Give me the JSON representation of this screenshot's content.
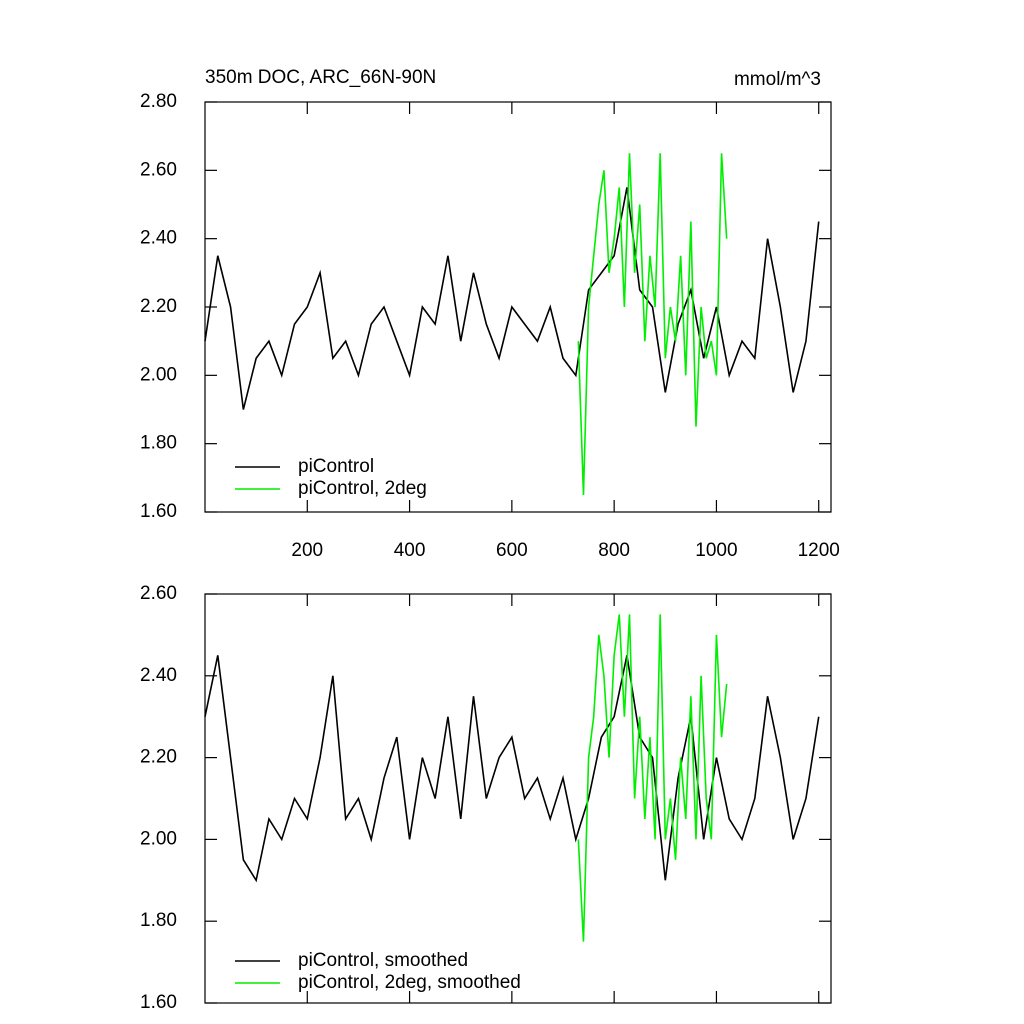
{
  "chart_data": [
    {
      "type": "line",
      "title": "350m DOC, ARC_66N-90N",
      "units": "mmol/m^3",
      "xlim": [
        0,
        1224
      ],
      "xticks": [
        200,
        400,
        600,
        800,
        1000,
        1200
      ],
      "ylim": [
        1.6,
        2.8
      ],
      "yticks": [
        {
          "value": 1.6,
          "label": "1.60"
        },
        {
          "value": 1.8,
          "label": "1.80"
        },
        {
          "value": 2.0,
          "label": "2.00"
        },
        {
          "value": 2.2,
          "label": "2.20"
        },
        {
          "value": 2.4,
          "label": "2.40"
        },
        {
          "value": 2.6,
          "label": "2.60"
        },
        {
          "value": 2.8,
          "label": "2.80"
        }
      ],
      "series": [
        {
          "name": "piControl",
          "color": "#000000",
          "x": [
            0,
            25,
            50,
            75,
            100,
            125,
            150,
            175,
            200,
            225,
            250,
            275,
            300,
            325,
            350,
            375,
            400,
            425,
            450,
            475,
            500,
            525,
            550,
            575,
            600,
            625,
            650,
            675,
            700,
            725,
            750,
            775,
            800,
            825,
            850,
            875,
            900,
            925,
            950,
            975,
            1000,
            1025,
            1050,
            1075,
            1100,
            1125,
            1150,
            1175,
            1200
          ],
          "values": [
            2.1,
            2.35,
            2.2,
            1.9,
            2.05,
            2.1,
            2.0,
            2.15,
            2.2,
            2.3,
            2.05,
            2.1,
            2.0,
            2.15,
            2.2,
            2.1,
            2.0,
            2.2,
            2.15,
            2.35,
            2.1,
            2.3,
            2.15,
            2.05,
            2.2,
            2.15,
            2.1,
            2.2,
            2.05,
            2.0,
            2.25,
            2.3,
            2.35,
            2.55,
            2.25,
            2.2,
            1.95,
            2.15,
            2.25,
            2.05,
            2.2,
            2.0,
            2.1,
            2.05,
            2.4,
            2.2,
            1.95,
            2.1,
            2.45
          ]
        },
        {
          "name": "piControl, 2deg",
          "color": "#00ee00",
          "x": [
            730,
            740,
            750,
            760,
            770,
            780,
            790,
            800,
            810,
            820,
            830,
            840,
            850,
            860,
            870,
            880,
            890,
            900,
            910,
            920,
            930,
            940,
            950,
            960,
            970,
            980,
            990,
            1000,
            1010,
            1020
          ],
          "values": [
            2.1,
            1.65,
            2.2,
            2.35,
            2.5,
            2.6,
            2.3,
            2.4,
            2.55,
            2.2,
            2.65,
            2.3,
            2.5,
            2.1,
            2.35,
            2.2,
            2.65,
            2.05,
            2.2,
            2.1,
            2.35,
            2.0,
            2.45,
            1.85,
            2.2,
            2.05,
            2.1,
            2.0,
            2.65,
            2.4
          ]
        }
      ]
    },
    {
      "type": "line",
      "xlim": [
        0,
        1224
      ],
      "xticks": [
        200,
        400,
        600,
        800,
        1000,
        1200
      ],
      "ylim": [
        1.6,
        2.6
      ],
      "yticks": [
        {
          "value": 1.6,
          "label": "1.60"
        },
        {
          "value": 1.8,
          "label": "1.80"
        },
        {
          "value": 2.0,
          "label": "2.00"
        },
        {
          "value": 2.2,
          "label": "2.20"
        },
        {
          "value": 2.4,
          "label": "2.40"
        },
        {
          "value": 2.6,
          "label": "2.60"
        }
      ],
      "series": [
        {
          "name": "piControl, smoothed",
          "color": "#000000",
          "x": [
            0,
            25,
            50,
            75,
            100,
            125,
            150,
            175,
            200,
            225,
            250,
            275,
            300,
            325,
            350,
            375,
            400,
            425,
            450,
            475,
            500,
            525,
            550,
            575,
            600,
            625,
            650,
            675,
            700,
            725,
            750,
            775,
            800,
            825,
            850,
            875,
            900,
            925,
            950,
            975,
            1000,
            1025,
            1050,
            1075,
            1100,
            1125,
            1150,
            1175,
            1200
          ],
          "values": [
            2.3,
            2.45,
            2.2,
            1.95,
            1.9,
            2.05,
            2.0,
            2.1,
            2.05,
            2.2,
            2.4,
            2.05,
            2.1,
            2.0,
            2.15,
            2.25,
            2.0,
            2.2,
            2.1,
            2.3,
            2.05,
            2.35,
            2.1,
            2.2,
            2.25,
            2.1,
            2.15,
            2.05,
            2.15,
            2.0,
            2.1,
            2.25,
            2.3,
            2.45,
            2.25,
            2.2,
            1.9,
            2.15,
            2.3,
            2.0,
            2.2,
            2.05,
            2.0,
            2.1,
            2.35,
            2.2,
            2.0,
            2.1,
            2.3
          ]
        },
        {
          "name": "piControl, 2deg, smoothed",
          "color": "#00ee00",
          "x": [
            730,
            740,
            750,
            760,
            770,
            780,
            790,
            800,
            810,
            820,
            830,
            840,
            850,
            860,
            870,
            880,
            890,
            900,
            910,
            920,
            930,
            940,
            950,
            960,
            970,
            980,
            990,
            1000,
            1010,
            1020
          ],
          "values": [
            2.0,
            1.75,
            2.2,
            2.3,
            2.5,
            2.4,
            2.2,
            2.45,
            2.55,
            2.3,
            2.55,
            2.1,
            2.3,
            2.05,
            2.25,
            2.0,
            2.55,
            2.0,
            2.1,
            1.95,
            2.2,
            2.05,
            2.35,
            2.0,
            2.4,
            2.1,
            2.0,
            2.5,
            2.25,
            2.38
          ]
        }
      ]
    }
  ]
}
